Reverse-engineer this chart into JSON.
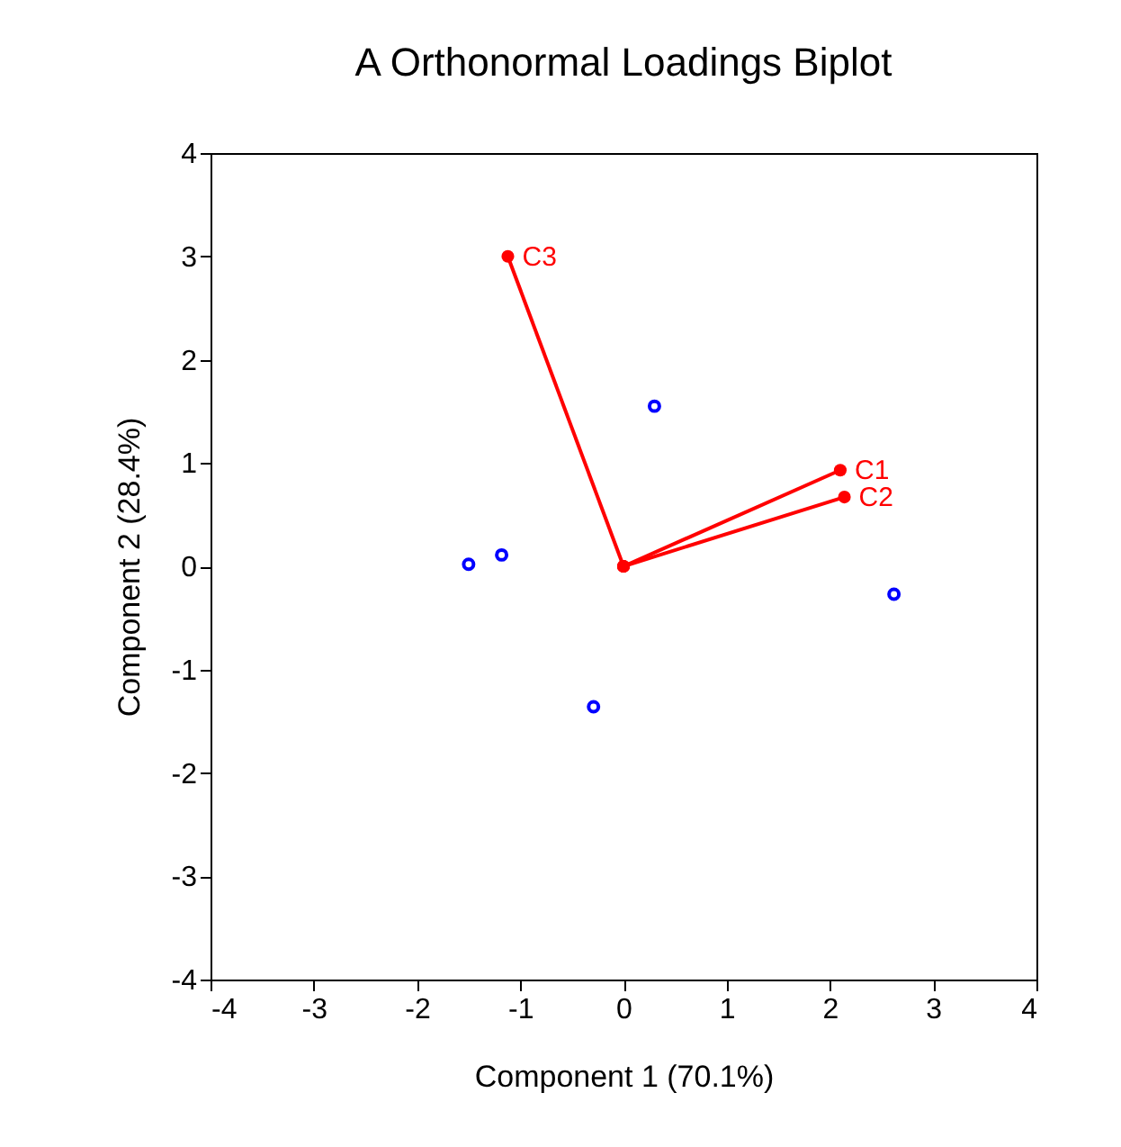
{
  "chart_data": {
    "type": "scatter",
    "title": "A Orthonormal Loadings Biplot",
    "xlabel": "Component 1 (70.1%)",
    "ylabel": "Component 2 (28.4%)",
    "xlim": [
      -4,
      4
    ],
    "ylim": [
      -4,
      4
    ],
    "xticks": [
      -4,
      -3,
      -2,
      -1,
      0,
      1,
      2,
      3,
      4
    ],
    "yticks": [
      -4,
      -3,
      -2,
      -1,
      0,
      1,
      2,
      3,
      4
    ],
    "grid": false,
    "marker": "circle",
    "series": [
      {
        "type": "line",
        "color": "#ff0000",
        "x": [
          0,
          2.1
        ],
        "values": [
          0,
          0.93
        ]
      },
      {
        "type": "line",
        "color": "#ff0000",
        "x": [
          0,
          2.14
        ],
        "values": [
          0,
          0.67
        ]
      },
      {
        "type": "line",
        "color": "#ff0000",
        "x": [
          0,
          -1.12
        ],
        "values": [
          0,
          3.0
        ]
      },
      {
        "color": "#0000ff",
        "x": [
          0.3,
          -1.5,
          -1.18,
          -0.29,
          2.62
        ],
        "values": [
          1.55,
          0.02,
          0.11,
          -1.36,
          -0.27
        ]
      }
    ],
    "annotations": [
      {
        "text": "C1",
        "x": 2.1,
        "y": 0.93
      },
      {
        "text": "C2",
        "x": 2.14,
        "y": 0.67
      },
      {
        "text": "C3",
        "x": -1.12,
        "y": 3.0
      }
    ]
  }
}
